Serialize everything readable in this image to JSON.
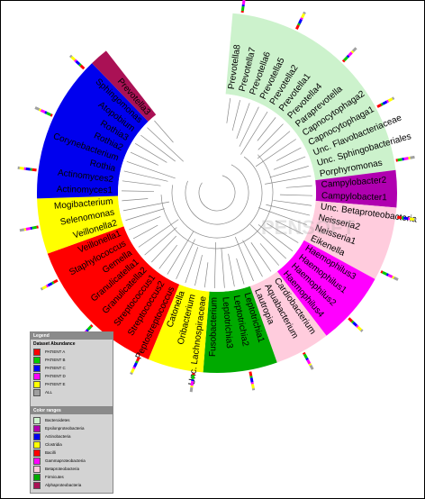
{
  "watermark": "PENSOFT",
  "groups": [
    {
      "name": "Bacteroidetes",
      "color": "#ccf2cc",
      "leaves": [
        "Prevotella8",
        "Prevotella7",
        "Prevotella6",
        "Prevotella5",
        "Prevotella2",
        "Prevotella1",
        "Prevotella4",
        "Paraprevotella",
        "Capnocytophaga2",
        "Capnocytophaga1",
        "Unc. Flavobacteriaceae",
        "Unc. Sphingobacteriales",
        "Porphyromonas"
      ]
    },
    {
      "name": "Epsilonproteobacteria",
      "color": "#b000b0",
      "leaves": [
        "Campylobacter2",
        "Campylobacter1"
      ]
    },
    {
      "name": "Betaproteobacteria",
      "color": "#ffccdd",
      "leaves": [
        "Unc. Betaproteobacteria",
        "Neisseria2",
        "Neisseria1",
        "Eikenella"
      ]
    },
    {
      "name": "Gammaproteobacteria",
      "color": "#ff00ff",
      "leaves": [
        "Haemophilus3",
        "Haemophilus1",
        "Haemophilus2",
        "Haemophilus4"
      ]
    },
    {
      "name": "Betaproteobacteria",
      "color": "#ffccdd",
      "leaves": [
        "Cardiobacterium",
        "Aquabacterium",
        "Lautropia"
      ]
    },
    {
      "name": "Firmicutes",
      "color": "#00aa00",
      "leaves": [
        "Leptotrichia1",
        "Leptotrichia2",
        "Leptotrichia3",
        "Fusobacterium"
      ]
    },
    {
      "name": "Clostridia",
      "color": "#ffff00",
      "leaves": [
        "Unc. Lachnospiraceae",
        "Oribacterium",
        "Catonella"
      ]
    },
    {
      "name": "Bacilli",
      "color": "#ff0000",
      "leaves": [
        "Peptostreptococcus",
        "Streptococcus2",
        "Streptococcus1",
        "Granulicatella2",
        "Granulicatella1",
        "Gemella",
        "Staphylococcus",
        "Veillonella1"
      ]
    },
    {
      "name": "Clostridia",
      "color": "#ffff00",
      "leaves": [
        "Veillonella2",
        "Selenomonas",
        "Mogibacterium"
      ]
    },
    {
      "name": "Actinobacteria",
      "color": "#0000ee",
      "leaves": [
        "Actinomyces1",
        "Actinomyces2",
        "Rothia",
        "Corynebacterium",
        "Rothia2",
        "Rothia3",
        "Atopobium",
        "Sphingomonas"
      ]
    },
    {
      "name": "Alphaproteobacteria",
      "color": "#aa1155",
      "leaves": [
        "Prevotella3"
      ]
    }
  ],
  "legend": {
    "title": "Legend",
    "subtitle": "Dataset Abundance",
    "items": [
      {
        "label": "PATIENT A",
        "color": "#ff0000"
      },
      {
        "label": "PATIENT B",
        "color": "#00cc00"
      },
      {
        "label": "PATIENT C",
        "color": "#0000ff"
      },
      {
        "label": "PATIENT D",
        "color": "#ff00ff"
      },
      {
        "label": "PATIENT E",
        "color": "#ffff00"
      },
      {
        "label": "ALL",
        "color": "#a0a0a0"
      }
    ]
  },
  "color_ranges": {
    "title": "Color ranges",
    "items": [
      {
        "label": "Bacteroidetes",
        "color": "#ccf2cc"
      },
      {
        "label": "Epsilonproteobacteria",
        "color": "#b000b0"
      },
      {
        "label": "Actinobacteria",
        "color": "#0000ee"
      },
      {
        "label": "Clostridia",
        "color": "#ffff00"
      },
      {
        "label": "Bacilli",
        "color": "#ff0000"
      },
      {
        "label": "Gammaproteobacteria",
        "color": "#ff00ff"
      },
      {
        "label": "Betaproteobacteria",
        "color": "#ffccdd"
      },
      {
        "label": "Firmicutes",
        "color": "#00aa00"
      },
      {
        "label": "Alphaproteobacteria",
        "color": "#aa1155"
      }
    ]
  }
}
